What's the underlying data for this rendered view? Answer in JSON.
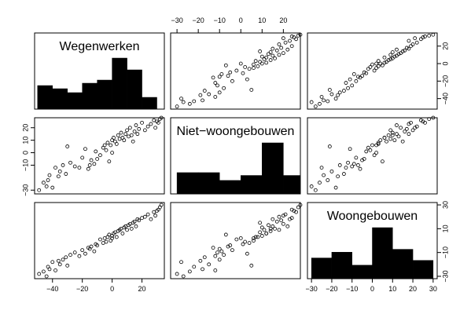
{
  "chart_data": {
    "type": "scatter",
    "variables": [
      "Wegenwerken",
      "Niet−woongebouwen",
      "Woongebouwen"
    ],
    "ranges": [
      [
        -52,
        35
      ],
      [
        -33,
        28
      ],
      [
        -32,
        32
      ]
    ],
    "axis_ticks": {
      "Wegenwerken": {
        "values": [
          -40,
          -20,
          0,
          20
        ],
        "labels": [
          "−40",
          "−20",
          "0",
          "20"
        ]
      },
      "Niet−woongebouwen": {
        "values": [
          -30,
          -20,
          -10,
          0,
          10,
          20
        ],
        "labels": [
          "−30",
          "−20",
          "−10",
          "0",
          "10",
          "20"
        ]
      },
      "Woongebouwen": {
        "values": [
          -30,
          -20,
          -10,
          0,
          10,
          20,
          30
        ],
        "labels": [
          "−30",
          "−20",
          "−10",
          "0",
          "10",
          "20",
          "30"
        ]
      }
    },
    "right_axis_ticks": {
      "row0": {
        "values": [
          -40,
          -20,
          0,
          20
        ],
        "labels": [
          "−40",
          "−20",
          "0",
          "20"
        ]
      },
      "row2": {
        "values": [
          -30,
          -10,
          10,
          30
        ],
        "labels": [
          "−30",
          "−10",
          "10",
          "30"
        ]
      }
    },
    "left_axis_ticks": {
      "row1": {
        "values": [
          -30,
          -10,
          0,
          10,
          20
        ],
        "labels": [
          "−30",
          "−10",
          "0",
          "10",
          "20"
        ]
      }
    },
    "histograms": {
      "Wegenwerken": {
        "bins": [
          -50,
          -40,
          -30,
          -20,
          -10,
          0,
          10,
          20,
          30
        ],
        "counts": [
          3,
          2.6,
          2.1,
          3.3,
          3.7,
          6.5,
          5.0,
          1.5
        ]
      },
      "Niet−woongebouwen": {
        "bins": [
          -30,
          -20,
          -10,
          0,
          10,
          20,
          30
        ],
        "counts": [
          3,
          3,
          1.9,
          2.6,
          7.2,
          2.6
        ]
      },
      "Woongebouwen": {
        "bins": [
          -30,
          -20,
          -10,
          0,
          10,
          20,
          30
        ],
        "counts": [
          4.3,
          5.5,
          2.8,
          10.6,
          6.1,
          3.8
        ]
      }
    },
    "points": {
      "Wegenwerken": [
        -49,
        -46,
        -44,
        -43,
        -42,
        -40,
        -38,
        -36,
        -35,
        -33,
        -31,
        -30,
        -28,
        -25,
        -22,
        -20,
        -18,
        -16,
        -14,
        -12,
        -11,
        -10,
        -8,
        -6,
        -5,
        -4,
        -3,
        -2,
        -1,
        0,
        1,
        2,
        3,
        4,
        5,
        6,
        7,
        8,
        9,
        10,
        11,
        12,
        13,
        14,
        15,
        16,
        17,
        18,
        20,
        22,
        24,
        26,
        28,
        29,
        30,
        31,
        32,
        33,
        -15,
        0
      ],
      "Niet−woongebouwen": [
        -30,
        -24,
        -27,
        -22,
        -18,
        -28,
        -12,
        -19,
        -15,
        -10,
        -17,
        5,
        -8,
        -11,
        -12,
        -4,
        3,
        -13,
        -6,
        -9,
        1,
        -5,
        -2,
        4,
        6,
        2,
        8,
        -7,
        6,
        10,
        12,
        9,
        7,
        14,
        11,
        16,
        12,
        10,
        15,
        18,
        13,
        20,
        14,
        9,
        17,
        22,
        15,
        19,
        24,
        18,
        21,
        23,
        26,
        20,
        25,
        24,
        27,
        28,
        -10,
        0
      ],
      "Woongebouwen": [
        -28,
        -26,
        -30,
        -22,
        -24,
        -18,
        -25,
        -17,
        -20,
        -16,
        -14,
        -21,
        -12,
        -10,
        -13,
        -8,
        -11,
        -6,
        -5,
        -9,
        -3,
        -4,
        1,
        -2,
        2,
        -1,
        3,
        5,
        0,
        4,
        6,
        7,
        3,
        8,
        9,
        10,
        6,
        11,
        12,
        9,
        13,
        14,
        10,
        15,
        16,
        12,
        18,
        17,
        19,
        20,
        22,
        18,
        24,
        21,
        25,
        26,
        28,
        30,
        -7,
        2
      ]
    }
  }
}
